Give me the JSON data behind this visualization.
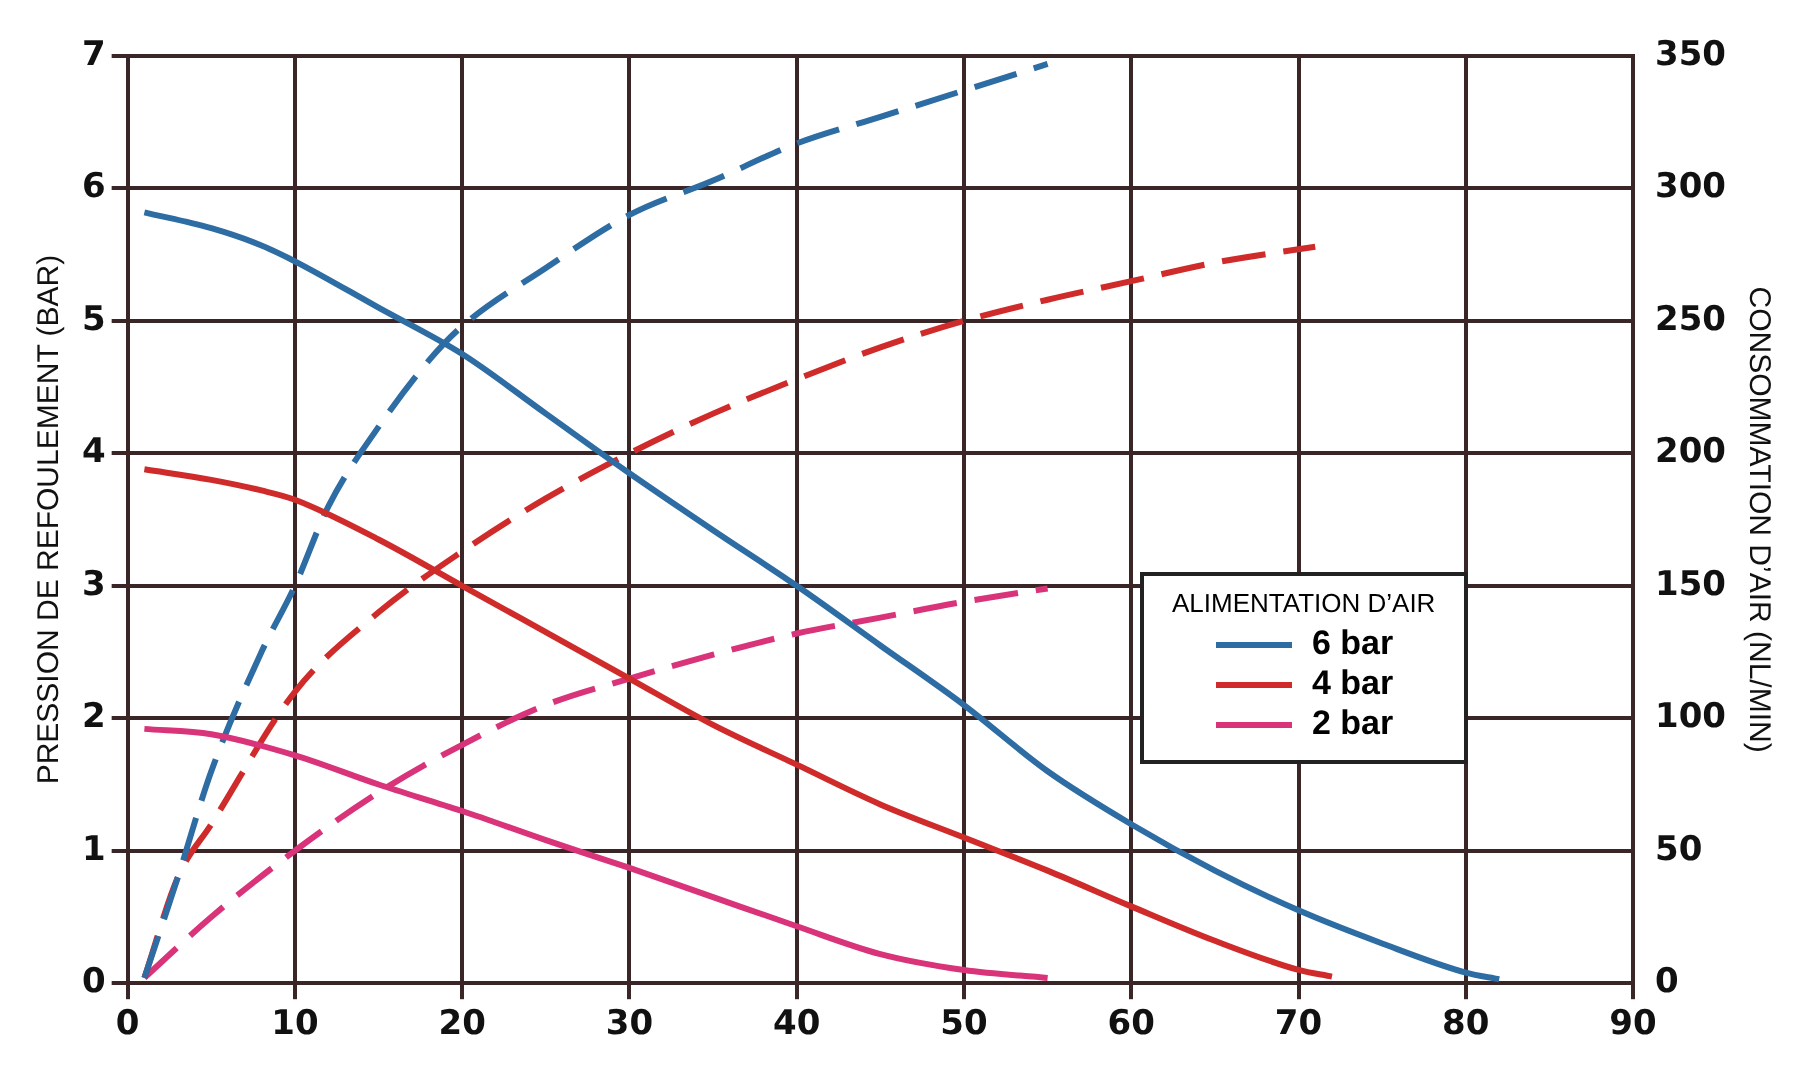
{
  "chart_data": {
    "type": "line",
    "ylabel": "PRESSION DE REFOULEMENT (BAR)",
    "y2label": "CONSOMMATION D’AIR (NL/MIN)",
    "legend_title": "ALIMENTATION D’AIR",
    "legend": "right",
    "grid": true,
    "marker": "none",
    "xlim": [
      0,
      90
    ],
    "xticks": [
      0,
      10,
      20,
      30,
      40,
      50,
      60,
      70,
      80,
      90
    ],
    "ylim": [
      0,
      7
    ],
    "yticks": [
      0,
      1,
      2,
      3,
      4,
      5,
      6,
      7
    ],
    "y2lim": [
      0,
      350
    ],
    "y2ticks": [
      0,
      50,
      100,
      150,
      200,
      250,
      300,
      350
    ],
    "series": [
      {
        "name": "6 bar",
        "color": "#2e6da4",
        "line_style": "solid",
        "x": [
          1,
          5,
          8,
          10,
          15,
          20,
          25,
          30,
          35,
          40,
          45,
          50,
          55,
          60,
          65,
          70,
          75,
          80,
          82
        ],
        "values": [
          5.82,
          5.7,
          5.57,
          5.45,
          5.1,
          4.75,
          4.3,
          3.85,
          3.42,
          3.0,
          2.55,
          2.1,
          1.6,
          1.2,
          0.85,
          0.55,
          0.3,
          0.08,
          0.03
        ]
      },
      {
        "name": "4 bar",
        "color": "#d02b2b",
        "line_style": "solid",
        "x": [
          1,
          5,
          8,
          10,
          15,
          20,
          25,
          30,
          35,
          40,
          45,
          50,
          55,
          60,
          65,
          70,
          72
        ],
        "values": [
          3.88,
          3.8,
          3.72,
          3.65,
          3.35,
          3.0,
          2.65,
          2.3,
          1.95,
          1.65,
          1.35,
          1.1,
          0.85,
          0.58,
          0.32,
          0.1,
          0.05
        ]
      },
      {
        "name": "2 bar",
        "color": "#d9337a",
        "line_style": "solid",
        "x": [
          1,
          5,
          10,
          15,
          20,
          25,
          30,
          35,
          40,
          45,
          50,
          55
        ],
        "values": [
          1.92,
          1.88,
          1.72,
          1.5,
          1.3,
          1.08,
          0.87,
          0.65,
          0.43,
          0.22,
          0.1,
          0.04
        ]
      },
      {
        "color": "#2e6da4",
        "line_style": "dashed",
        "axis": "y2",
        "x": [
          1,
          3,
          5,
          8,
          10,
          12,
          15,
          18,
          20,
          25,
          30,
          35,
          40,
          45,
          50,
          55
        ],
        "values": [
          2,
          40,
          80,
          125,
          150,
          180,
          210,
          235,
          248,
          270,
          290,
          303,
          317,
          327,
          337,
          347
        ]
      },
      {
        "color": "#d02b2b",
        "line_style": "dashed",
        "axis": "y2",
        "x": [
          1,
          3,
          5,
          10,
          15,
          20,
          25,
          30,
          35,
          40,
          45,
          50,
          55,
          60,
          65,
          71
        ],
        "values": [
          2,
          40,
          60,
          110,
          140,
          163,
          183,
          200,
          215,
          228,
          240,
          250,
          258,
          265,
          272,
          278
        ]
      },
      {
        "color": "#d9337a",
        "line_style": "dashed",
        "axis": "y2",
        "x": [
          1,
          5,
          10,
          15,
          20,
          25,
          30,
          35,
          40,
          45,
          50,
          55
        ],
        "values": [
          2,
          25,
          50,
          72,
          90,
          105,
          115,
          124,
          132,
          138,
          144,
          149
        ]
      }
    ]
  }
}
